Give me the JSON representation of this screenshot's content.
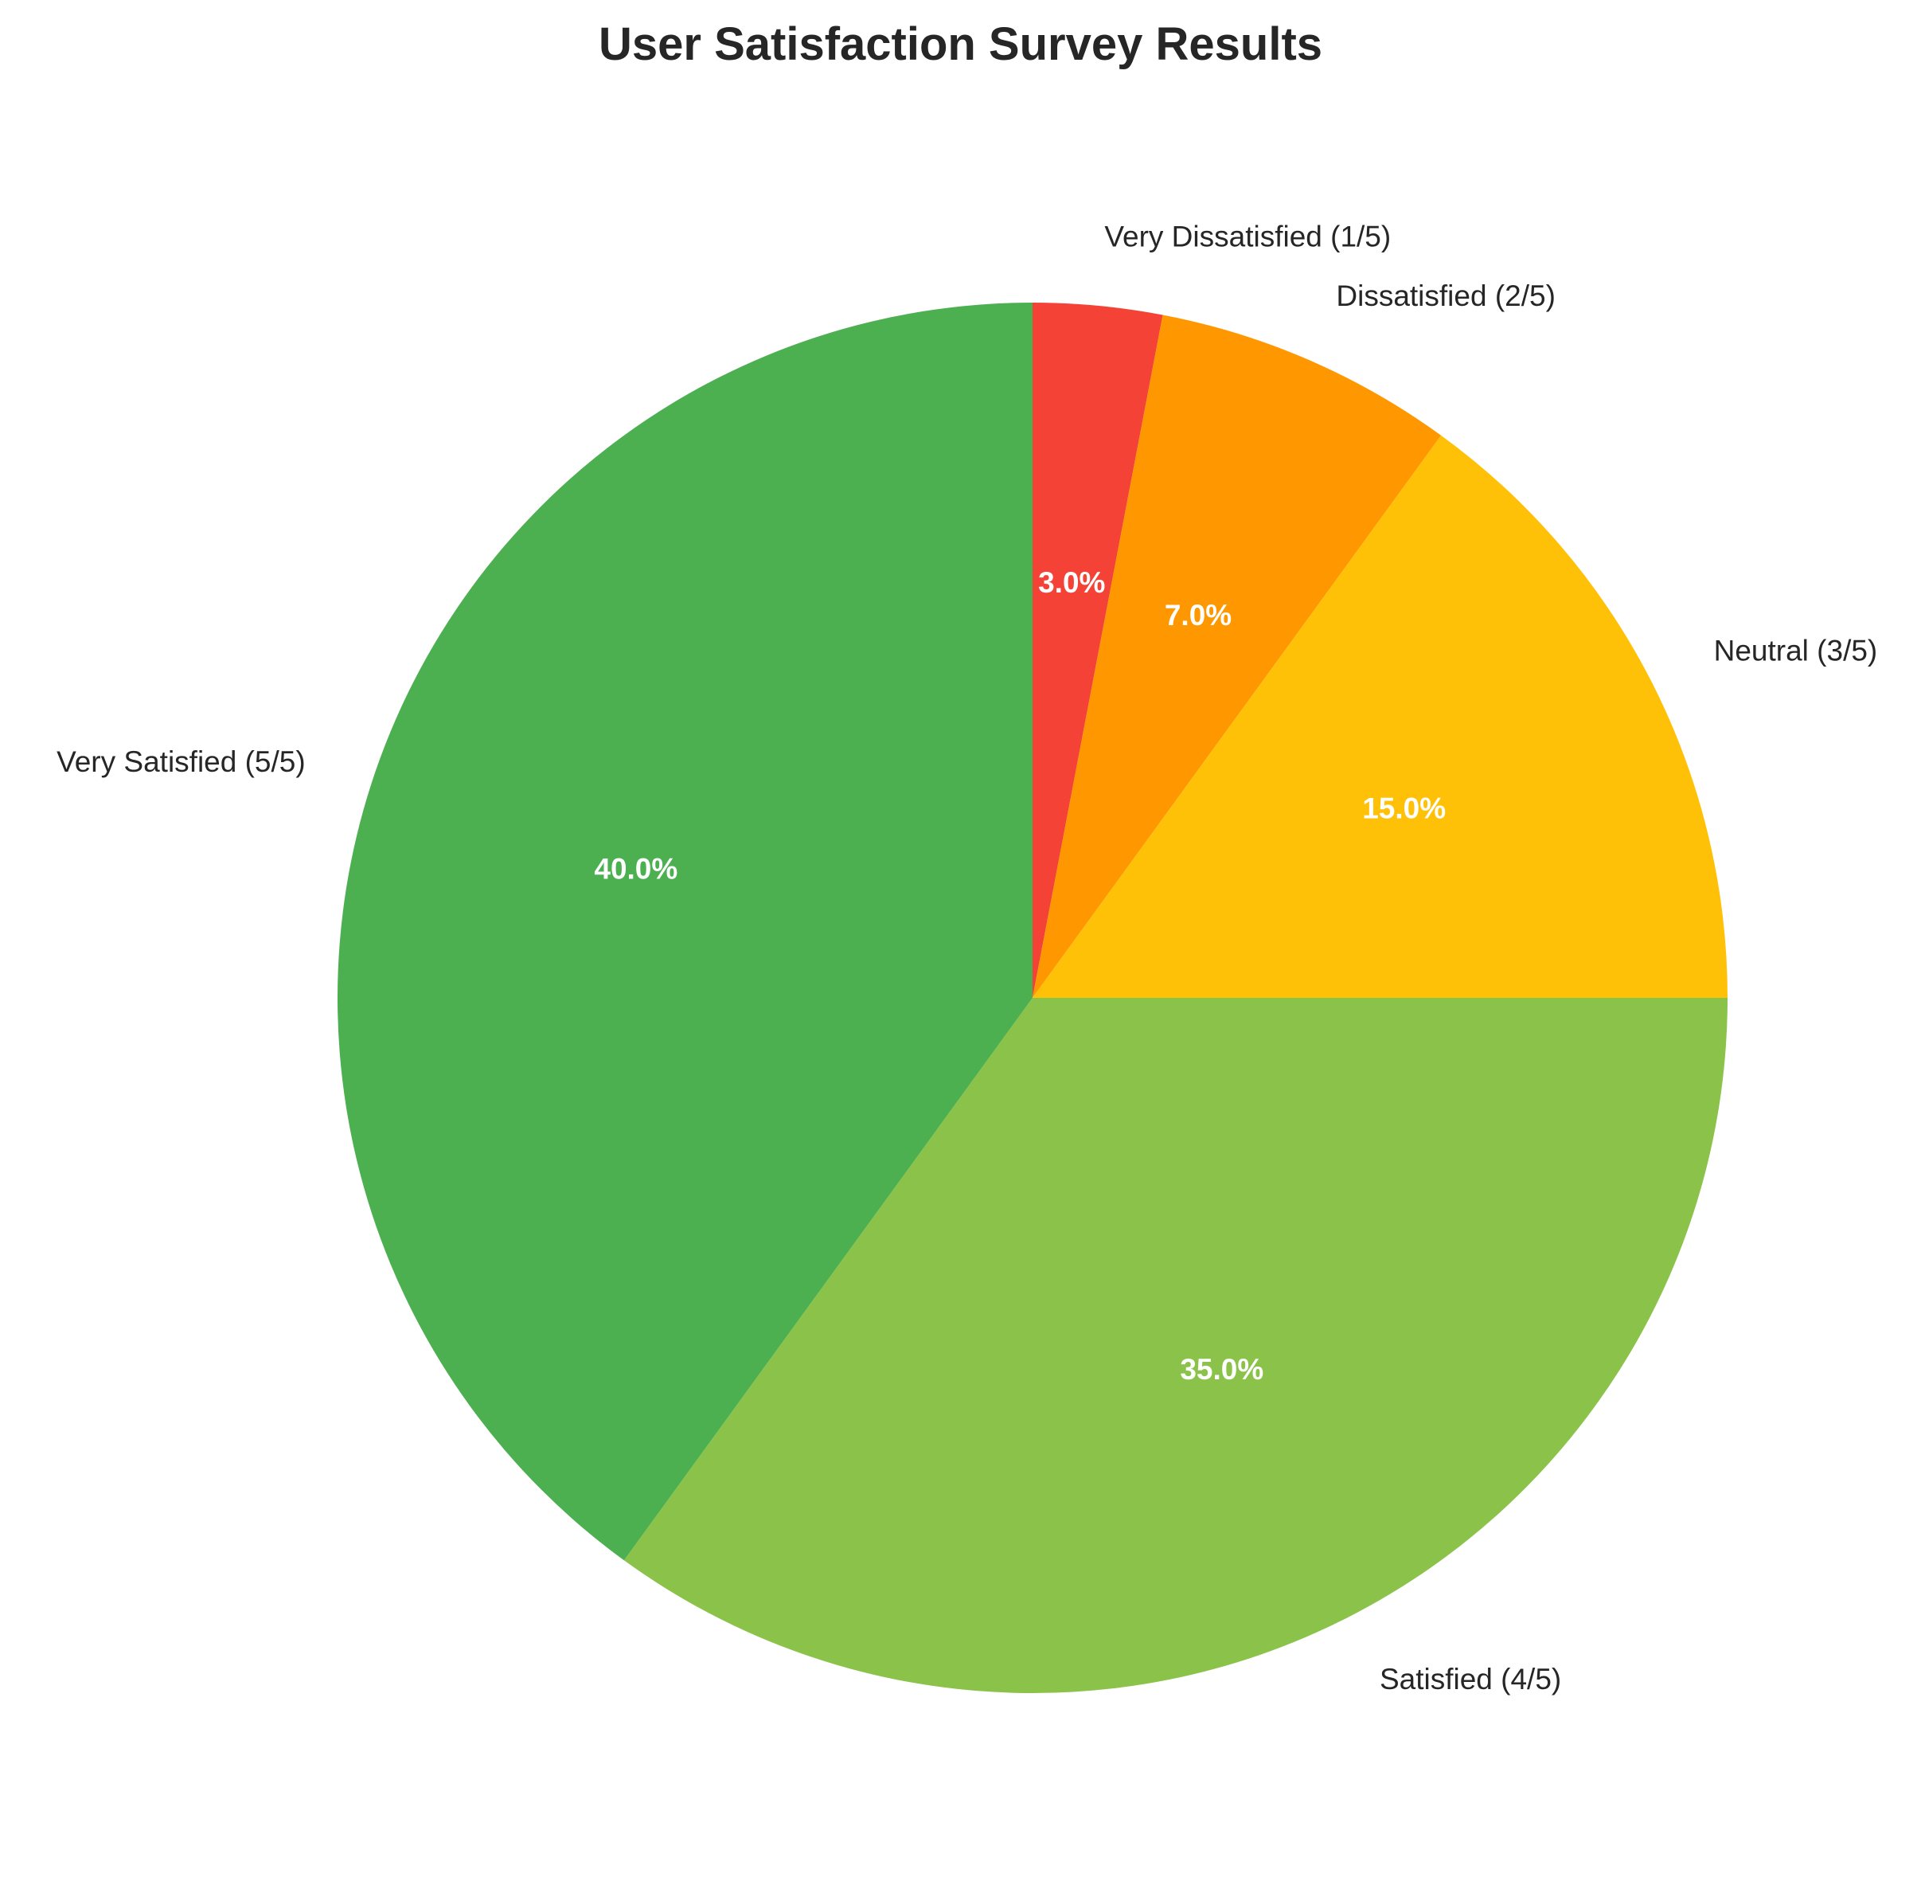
{
  "chart_data": {
    "type": "pie",
    "title": "User Satisfaction Survey Results",
    "start_angle_deg": 90,
    "direction": "clockwise",
    "slices": [
      {
        "label": "Very Dissatisfied (1/5)",
        "value": 3.0,
        "pct_label": "3.0%",
        "color": "#F44336"
      },
      {
        "label": "Dissatisfied (2/5)",
        "value": 7.0,
        "pct_label": "7.0%",
        "color": "#FF9800"
      },
      {
        "label": "Neutral (3/5)",
        "value": 15.0,
        "pct_label": "15.0%",
        "color": "#FFC107"
      },
      {
        "label": "Satisfied (4/5)",
        "value": 35.0,
        "pct_label": "35.0%",
        "color": "#8BC34A"
      },
      {
        "label": "Very Satisfied (5/5)",
        "value": 40.0,
        "pct_label": "40.0%",
        "color": "#4CAF50"
      }
    ]
  }
}
